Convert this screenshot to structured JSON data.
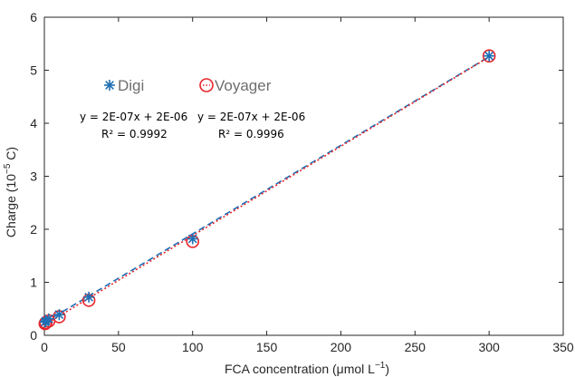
{
  "chart_data": {
    "type": "scatter",
    "xlabel": "FCA concentration (μmol L",
    "xlabel_sup": "−1",
    "xlabel_suffix": ")",
    "ylabel": "Charge (10",
    "ylabel_sup": "−5",
    "ylabel_suffix": " C)",
    "xlim": [
      0,
      350
    ],
    "ylim": [
      0,
      6
    ],
    "xticks": [
      0,
      50,
      100,
      150,
      200,
      250,
      300,
      350
    ],
    "yticks": [
      0,
      1,
      2,
      3,
      4,
      5,
      6
    ],
    "grid": false,
    "legend_position": "top-left",
    "series": [
      {
        "name": "Digi",
        "color": "#1f6fb4",
        "marker": "asterisk",
        "line_style": "dashed",
        "x": [
          0.5,
          1,
          3,
          10,
          30,
          100,
          300
        ],
        "y": [
          0.25,
          0.27,
          0.31,
          0.39,
          0.72,
          1.82,
          5.27
        ],
        "fit": {
          "slope": 0.01672,
          "intercept": 0.24
        },
        "equation": "y = 2E-07x + 2E-06",
        "r2": "R² = 0.9992"
      },
      {
        "name": "Voyager",
        "color": "#e8252b",
        "marker": "circle",
        "line_style": "dotted",
        "x": [
          0.5,
          1,
          3,
          10,
          30,
          100,
          300
        ],
        "y": [
          0.22,
          0.24,
          0.27,
          0.35,
          0.66,
          1.77,
          5.27
        ],
        "fit": {
          "slope": 0.01685,
          "intercept": 0.195
        },
        "equation": "y = 2E-07x + 2E-06",
        "r2": "R² = 0.9996"
      }
    ]
  }
}
